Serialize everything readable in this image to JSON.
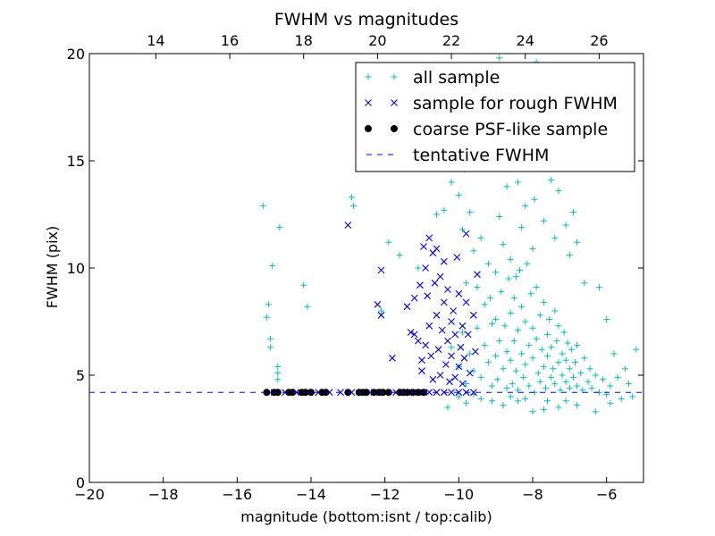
{
  "chart_data": {
    "type": "scatter",
    "title": "FWHM vs magnitudes",
    "xlabel": "magnitude (bottom:isnt / top:calib)",
    "ylabel": "FWHM (pix)",
    "xlim": [
      -20,
      -5
    ],
    "ylim": [
      0,
      20
    ],
    "x_ticks": [
      -20,
      -18,
      -16,
      -14,
      -12,
      -10,
      -8,
      -6
    ],
    "x_tick_labels": [
      "−20",
      "−18",
      "−16",
      "−14",
      "−12",
      "−10",
      "−8",
      "−6"
    ],
    "y_ticks": [
      0,
      5,
      10,
      15,
      20
    ],
    "y_tick_labels": [
      "0",
      "5",
      "10",
      "15",
      "20"
    ],
    "top_axis": {
      "offset": 32.2,
      "ticks": [
        14,
        16,
        18,
        20,
        22,
        24,
        26
      ],
      "tick_labels": [
        "14",
        "16",
        "18",
        "20",
        "22",
        "24",
        "26"
      ]
    },
    "grid": false,
    "legend_position": "upper-right",
    "tentative_fwhm": 4.2,
    "series": [
      {
        "name": "all sample",
        "marker": "plus",
        "color": "#00bfbf",
        "points": [
          [
            -15.3,
            12.9
          ],
          [
            -15.2,
            7.7
          ],
          [
            -15.15,
            8.3
          ],
          [
            -15.1,
            6.7
          ],
          [
            -15.1,
            6.3
          ],
          [
            -15.05,
            10.1
          ],
          [
            -14.9,
            5.4
          ],
          [
            -14.9,
            5.1
          ],
          [
            -14.9,
            4.8
          ],
          [
            -14.85,
            11.9
          ],
          [
            -14.2,
            9.2
          ],
          [
            -14.1,
            8.2
          ],
          [
            -12.9,
            13.3
          ],
          [
            -12.85,
            12.9
          ],
          [
            -11.9,
            11.2
          ],
          [
            -11.6,
            10.6
          ],
          [
            -11.1,
            10.0
          ],
          [
            -12.1,
            8.0
          ],
          [
            -10.6,
            12.5
          ],
          [
            -10.4,
            12.7
          ],
          [
            -10.3,
            15.7
          ],
          [
            -10.2,
            14.0
          ],
          [
            -10.15,
            15.2
          ],
          [
            -10.0,
            13.4
          ],
          [
            -9.9,
            11.8
          ],
          [
            -9.85,
            14.6
          ],
          [
            -9.8,
            9.3
          ],
          [
            -9.7,
            12.6
          ],
          [
            -9.6,
            10.8
          ],
          [
            -9.5,
            9.1
          ],
          [
            -9.4,
            11.4
          ],
          [
            -9.3,
            8.3
          ],
          [
            -9.2,
            10.2
          ],
          [
            -9.1,
            7.4
          ],
          [
            -9.0,
            9.8
          ],
          [
            -8.9,
            12.4
          ],
          [
            -8.8,
            11.1
          ],
          [
            -8.7,
            13.8
          ],
          [
            -8.6,
            10.4
          ],
          [
            -8.5,
            15.3
          ],
          [
            -8.45,
            9.6
          ],
          [
            -8.4,
            14.0
          ],
          [
            -8.3,
            11.9
          ],
          [
            -8.2,
            12.9
          ],
          [
            -8.1,
            16.3
          ],
          [
            -8.0,
            10.9
          ],
          [
            -7.95,
            13.2
          ],
          [
            -7.9,
            18.6
          ],
          [
            -7.8,
            15.5
          ],
          [
            -7.7,
            12.2
          ],
          [
            -7.6,
            17.4
          ],
          [
            -7.5,
            14.1
          ],
          [
            -7.4,
            11.4
          ],
          [
            -7.3,
            13.6
          ],
          [
            -7.2,
            15.9
          ],
          [
            -7.1,
            12.0
          ],
          [
            -7.0,
            10.6
          ],
          [
            -6.9,
            12.6
          ],
          [
            -6.8,
            11.2
          ],
          [
            -6.6,
            9.3
          ],
          [
            -6.4,
            14.9
          ],
          [
            -6.2,
            9.1
          ],
          [
            -6.0,
            7.6
          ],
          [
            -5.8,
            6.0
          ],
          [
            -5.5,
            5.3
          ],
          [
            -5.2,
            6.2
          ],
          [
            -8.9,
            19.8
          ],
          [
            -8.3,
            19.3
          ],
          [
            -7.9,
            19.6
          ],
          [
            -7.6,
            18.3
          ],
          [
            -8.7,
            17.6
          ],
          [
            -9.1,
            16.9
          ],
          [
            -9.6,
            15.8
          ],
          [
            -10.5,
            14.7
          ],
          [
            -11.4,
            14.7
          ],
          [
            -12.0,
            15.3
          ],
          [
            -10.2,
            6.3
          ],
          [
            -10.0,
            5.4
          ],
          [
            -9.9,
            7.0
          ],
          [
            -9.8,
            4.6
          ],
          [
            -9.7,
            6.0
          ],
          [
            -9.6,
            5.2
          ],
          [
            -9.5,
            7.2
          ],
          [
            -9.4,
            4.9
          ],
          [
            -9.3,
            6.4
          ],
          [
            -9.2,
            5.6
          ],
          [
            -9.15,
            8.6
          ],
          [
            -9.1,
            4.5
          ],
          [
            -9.0,
            5.9
          ],
          [
            -9.0,
            7.6
          ],
          [
            -8.95,
            4.8
          ],
          [
            -8.9,
            6.6
          ],
          [
            -8.85,
            8.9
          ],
          [
            -8.8,
            5.3
          ],
          [
            -8.75,
            7.3
          ],
          [
            -8.7,
            4.4
          ],
          [
            -8.7,
            6.1
          ],
          [
            -8.65,
            9.5
          ],
          [
            -8.6,
            5.7
          ],
          [
            -8.6,
            7.9
          ],
          [
            -8.55,
            4.6
          ],
          [
            -8.5,
            6.6
          ],
          [
            -8.5,
            8.6
          ],
          [
            -8.45,
            5.2
          ],
          [
            -8.4,
            7.1
          ],
          [
            -8.4,
            4.3
          ],
          [
            -8.35,
            9.9
          ],
          [
            -8.3,
            6.0
          ],
          [
            -8.3,
            8.2
          ],
          [
            -8.25,
            4.9
          ],
          [
            -8.2,
            7.5
          ],
          [
            -8.2,
            5.5
          ],
          [
            -8.15,
            10.2
          ],
          [
            -8.1,
            6.4
          ],
          [
            -8.1,
            4.5
          ],
          [
            -8.05,
            8.8
          ],
          [
            -8.0,
            5.8
          ],
          [
            -8.0,
            7.2
          ],
          [
            -7.95,
            4.2
          ],
          [
            -7.9,
            6.7
          ],
          [
            -7.9,
            9.1
          ],
          [
            -7.85,
            5.1
          ],
          [
            -7.8,
            7.8
          ],
          [
            -7.8,
            4.7
          ],
          [
            -7.75,
            6.2
          ],
          [
            -7.7,
            5.4
          ],
          [
            -7.7,
            8.4
          ],
          [
            -7.65,
            4.4
          ],
          [
            -7.6,
            6.9
          ],
          [
            -7.6,
            5.9
          ],
          [
            -7.55,
            7.6
          ],
          [
            -7.5,
            4.9
          ],
          [
            -7.5,
            6.3
          ],
          [
            -7.45,
            5.3
          ],
          [
            -7.4,
            8.0
          ],
          [
            -7.4,
            4.6
          ],
          [
            -7.35,
            6.6
          ],
          [
            -7.3,
            5.6
          ],
          [
            -7.3,
            7.3
          ],
          [
            -7.25,
            4.3
          ],
          [
            -7.2,
            6.0
          ],
          [
            -7.2,
            5.0
          ],
          [
            -7.15,
            7.0
          ],
          [
            -7.1,
            4.7
          ],
          [
            -7.1,
            5.7
          ],
          [
            -7.05,
            6.5
          ],
          [
            -7.0,
            4.4
          ],
          [
            -7.0,
            5.3
          ],
          [
            -6.95,
            6.2
          ],
          [
            -6.9,
            4.9
          ],
          [
            -6.85,
            5.6
          ],
          [
            -6.8,
            4.5
          ],
          [
            -6.8,
            6.4
          ],
          [
            -6.7,
            5.1
          ],
          [
            -6.65,
            4.3
          ],
          [
            -6.6,
            5.8
          ],
          [
            -6.5,
            4.7
          ],
          [
            -6.45,
            5.3
          ],
          [
            -6.4,
            4.4
          ],
          [
            -6.3,
            5.0
          ],
          [
            -6.2,
            4.2
          ],
          [
            -6.1,
            4.8
          ],
          [
            -6.0,
            4.1
          ],
          [
            -5.9,
            4.5
          ],
          [
            -5.7,
            4.9
          ],
          [
            -5.6,
            3.9
          ],
          [
            -5.4,
            4.6
          ],
          [
            -5.3,
            4.0
          ],
          [
            -7.3,
            3.5
          ],
          [
            -7.7,
            3.4
          ],
          [
            -8.0,
            3.3
          ],
          [
            -6.8,
            3.6
          ],
          [
            -6.3,
            3.3
          ],
          [
            -8.4,
            3.8
          ],
          [
            -7.1,
            3.8
          ],
          [
            -5.9,
            3.7
          ],
          [
            -10.3,
            3.5
          ],
          [
            -9.8,
            3.7
          ],
          [
            -9.4,
            3.9
          ],
          [
            -8.8,
            3.6
          ],
          [
            -8.6,
            4.0
          ],
          [
            -9.1,
            3.8
          ],
          [
            -10.0,
            4.0
          ],
          [
            -9.6,
            4.1
          ],
          [
            -8.2,
            3.9
          ],
          [
            -7.6,
            3.8
          ]
        ]
      },
      {
        "name": "sample for rough FWHM",
        "marker": "x",
        "color": "#0000ff",
        "points": [
          [
            -13.0,
            12.0
          ],
          [
            -12.1,
            9.9
          ],
          [
            -12.2,
            8.3
          ],
          [
            -12.1,
            7.8
          ],
          [
            -11.8,
            5.8
          ],
          [
            -11.4,
            8.2
          ],
          [
            -11.3,
            7.0
          ],
          [
            -11.2,
            6.9
          ],
          [
            -11.2,
            8.6
          ],
          [
            -11.05,
            9.2
          ],
          [
            -11.1,
            6.6
          ],
          [
            -11.0,
            5.7
          ],
          [
            -11.0,
            5.2
          ],
          [
            -10.95,
            11.0
          ],
          [
            -10.9,
            6.4
          ],
          [
            -10.9,
            10.0
          ],
          [
            -10.85,
            8.7
          ],
          [
            -10.8,
            11.4
          ],
          [
            -10.8,
            7.3
          ],
          [
            -10.75,
            5.9
          ],
          [
            -10.7,
            10.7
          ],
          [
            -10.7,
            4.8
          ],
          [
            -10.65,
            9.3
          ],
          [
            -10.6,
            7.8
          ],
          [
            -10.6,
            10.9
          ],
          [
            -10.55,
            6.2
          ],
          [
            -10.5,
            9.6
          ],
          [
            -10.5,
            5.0
          ],
          [
            -10.45,
            7.1
          ],
          [
            -10.4,
            10.3
          ],
          [
            -10.4,
            8.4
          ],
          [
            -10.35,
            5.5
          ],
          [
            -10.3,
            6.6
          ],
          [
            -10.3,
            9.0
          ],
          [
            -10.25,
            4.7
          ],
          [
            -10.2,
            7.5
          ],
          [
            -10.2,
            5.9
          ],
          [
            -10.15,
            8.0
          ],
          [
            -10.1,
            4.9
          ],
          [
            -10.1,
            6.9
          ],
          [
            -10.05,
            10.5
          ],
          [
            -10.0,
            5.4
          ],
          [
            -10.0,
            8.8
          ],
          [
            -9.95,
            6.3
          ],
          [
            -9.9,
            4.6
          ],
          [
            -9.9,
            7.3
          ],
          [
            -9.85,
            5.8
          ],
          [
            -9.8,
            8.4
          ],
          [
            -9.8,
            11.6
          ],
          [
            -9.75,
            6.9
          ],
          [
            -9.7,
            5.1
          ],
          [
            -9.6,
            7.8
          ],
          [
            -9.55,
            6.1
          ],
          [
            -9.5,
            9.7
          ],
          [
            -15.0,
            4.2
          ],
          [
            -14.7,
            4.2
          ],
          [
            -14.4,
            4.2
          ],
          [
            -14.1,
            4.2
          ],
          [
            -13.8,
            4.2
          ],
          [
            -13.5,
            4.2
          ],
          [
            -13.2,
            4.2
          ],
          [
            -12.9,
            4.2
          ],
          [
            -12.6,
            4.2
          ],
          [
            -12.3,
            4.2
          ],
          [
            -12.0,
            4.2
          ],
          [
            -11.7,
            4.2
          ],
          [
            -11.4,
            4.2
          ],
          [
            -11.1,
            4.2
          ],
          [
            -10.8,
            4.2
          ],
          [
            -10.6,
            4.2
          ],
          [
            -10.4,
            4.2
          ],
          [
            -10.2,
            4.2
          ],
          [
            -10.0,
            4.2
          ],
          [
            -9.8,
            4.2
          ],
          [
            -9.6,
            4.2
          ]
        ]
      },
      {
        "name": "coarse PSF-like sample",
        "marker": "circle",
        "color": "#000000",
        "points": [
          [
            -15.2,
            4.2
          ],
          [
            -15.0,
            4.2
          ],
          [
            -14.9,
            4.2
          ],
          [
            -14.6,
            4.2
          ],
          [
            -14.5,
            4.2
          ],
          [
            -14.25,
            4.2
          ],
          [
            -14.15,
            4.2
          ],
          [
            -14.0,
            4.2
          ],
          [
            -13.7,
            4.2
          ],
          [
            -13.6,
            4.2
          ],
          [
            -13.0,
            4.2
          ],
          [
            -12.7,
            4.2
          ],
          [
            -12.6,
            4.2
          ],
          [
            -12.5,
            4.2
          ],
          [
            -12.3,
            4.2
          ],
          [
            -12.15,
            4.2
          ],
          [
            -12.05,
            4.2
          ],
          [
            -11.9,
            4.2
          ],
          [
            -11.6,
            4.2
          ],
          [
            -11.5,
            4.2
          ],
          [
            -11.4,
            4.2
          ],
          [
            -11.25,
            4.2
          ],
          [
            -11.1,
            4.2
          ],
          [
            -10.95,
            4.2
          ]
        ]
      },
      {
        "name": "tentative FWHM",
        "marker": "dashed-line",
        "color": "#0000ff"
      }
    ]
  }
}
